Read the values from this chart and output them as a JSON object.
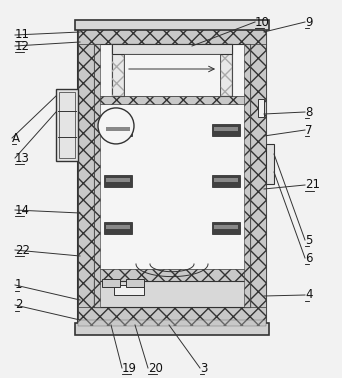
{
  "fig_width": 3.42,
  "fig_height": 3.78,
  "dpi": 100,
  "bg_color": "#f2f2f2",
  "line_color": "#333333",
  "hatch_color": "#888888",
  "wall_fill": "#c8c8c8",
  "inner_fill": "#f5f5f5",
  "shelf_fill": "#444444",
  "shelf_highlight": "#888888"
}
